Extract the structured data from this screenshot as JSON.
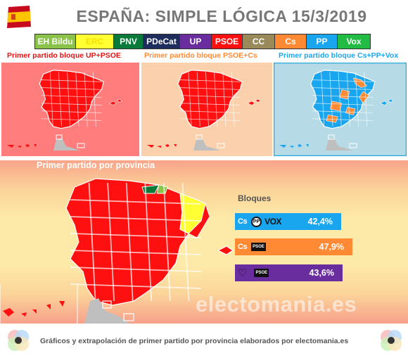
{
  "header": {
    "title": "ESPAÑA: SIMPLE LÓGICA 15/3/2019"
  },
  "legend": [
    {
      "label": "EH Bildu",
      "bg": "#8ac24a",
      "fg": "#ffffff",
      "w": 58
    },
    {
      "label": "ERC",
      "bg": "#ffff33",
      "fg": "#f6e000",
      "w": 54
    },
    {
      "label": "PNV",
      "bg": "#0a7a3a",
      "fg": "#ffffff",
      "w": 42
    },
    {
      "label": "PDeCat",
      "bg": "#1f2d5c",
      "fg": "#ffffff",
      "w": 52
    },
    {
      "label": "UP",
      "bg": "#6a2d9e",
      "fg": "#ffffff",
      "w": 45
    },
    {
      "label": "PSOE",
      "bg": "#ff1010",
      "fg": "#ffffff",
      "w": 44
    },
    {
      "label": "CC",
      "bg": "#9a8a5a",
      "fg": "#ffffff",
      "w": 46
    },
    {
      "label": "Cs",
      "bg": "#ff8a33",
      "fg": "#ffffff",
      "w": 45
    },
    {
      "label": "PP",
      "bg": "#1aa6ef",
      "fg": "#ffffff",
      "w": 44
    },
    {
      "label": "Vox",
      "bg": "#22bb44",
      "fg": "#ffffff",
      "w": 46
    }
  ],
  "panels": [
    {
      "label": "Primer partido bloque UP+PSOE",
      "label_color": "#e81010",
      "bg": "#ff7d7d",
      "border": "#ff7d7d"
    },
    {
      "label": "Primer partido bloque PSOE+Cs",
      "label_color": "#ff8a33",
      "bg": "#fbd1ad",
      "border": "#fbd1ad"
    },
    {
      "label": "Primer partido bloque Cs+PP+Vox",
      "label_color": "#1aa6ef",
      "bg": "#b7dbe6",
      "border": "#2aa8e0"
    }
  ],
  "main_map": {
    "title": "Primer partido por provincia"
  },
  "bloques": {
    "label": "Bloques",
    "bars": [
      {
        "logos": [
          "Cs",
          "PP",
          "VOX"
        ],
        "value": "42,4%",
        "color": "#1aa6ef"
      },
      {
        "logos": [
          "Cs",
          "PSOE"
        ],
        "value": "47,9%",
        "color": "#ff8a33"
      },
      {
        "logos": [
          "heart",
          "PSOE"
        ],
        "value": "43,6%",
        "color": "#6a2d9e"
      }
    ]
  },
  "watermark": "electomania.es",
  "footer": {
    "text": "Gráficos y extrapolación de primer partido por provincia elaborados por electomania.es"
  }
}
